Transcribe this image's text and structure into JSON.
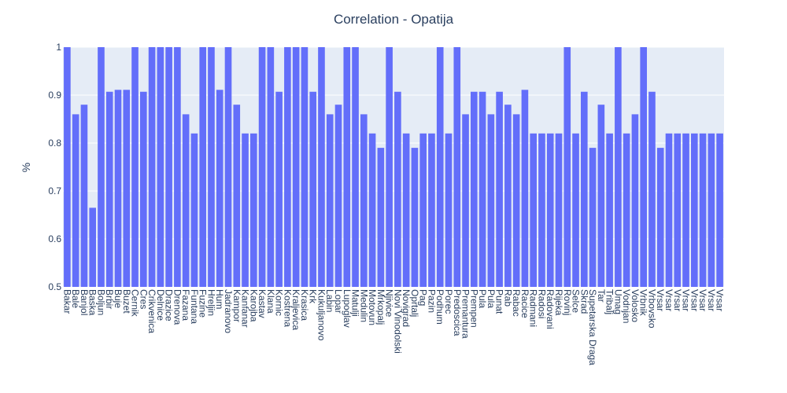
{
  "chart_data": {
    "type": "bar",
    "title": "Correlation - Opatija",
    "ylabel": "%",
    "xlabel": "",
    "ylim": [
      0.5,
      1.0
    ],
    "yticks": [
      "0.5",
      "0.6",
      "0.7",
      "0.8",
      "0.9",
      "1"
    ],
    "grid": true,
    "categories": [
      "Bakar",
      "Bale",
      "Banjol",
      "Baska",
      "Boljun",
      "Brbir",
      "Buje",
      "Buzet",
      "Cernik",
      "Cres",
      "Crikvenica",
      "Delnice",
      "Drazice",
      "Drenova",
      "Fazana",
      "Funtana",
      "Fuzine",
      "Hreljin",
      "Hum",
      "Jadranovo",
      "Kampor",
      "Kanfanar",
      "Karojba",
      "Kastav",
      "Klana",
      "Kornic",
      "Kostrena",
      "Kraljevica",
      "Krasica",
      "Krk",
      "Kukuljanovo",
      "Labin",
      "Lopar",
      "Lupoglav",
      "Matulji",
      "Medulin",
      "Motovun",
      "Mrkopalj",
      "Njivice",
      "Novi Vinodolski",
      "Novigrad",
      "Oprtalj",
      "Pag",
      "Pazin",
      "Podhum",
      "Porec",
      "Predoscica",
      "Premantura",
      "Prempen",
      "Pula",
      "Pula",
      "Punat",
      "Rab",
      "Rabac",
      "Racice",
      "Radmani",
      "Radosi",
      "Radovani",
      "Rijeka",
      "Rovinj",
      "Selce",
      "Skrad",
      "Supetarska Draga",
      "Tar",
      "Tribalj",
      "Umag",
      "Vodnjan",
      "Volosko",
      "Vrbnik",
      "Vrbovsko",
      "Vrsar",
      "Vrsar",
      "Vrsar",
      "Vrsar",
      "Vrsar",
      "Vrsar",
      "Vrsar",
      "Vrsar"
    ],
    "values": [
      1.0,
      0.86,
      0.88,
      0.665,
      1.0,
      0.907,
      0.911,
      0.911,
      1.0,
      0.907,
      1.0,
      1.0,
      1.0,
      1.0,
      0.86,
      0.82,
      1.0,
      1.0,
      0.911,
      1.0,
      0.88,
      0.82,
      0.82,
      1.0,
      1.0,
      0.907,
      1.0,
      1.0,
      1.0,
      0.907,
      1.0,
      0.86,
      0.88,
      1.0,
      1.0,
      0.86,
      0.82,
      0.79,
      1.0,
      0.907,
      0.82,
      0.79,
      0.82,
      0.82,
      1.0,
      0.82,
      1.0,
      0.86,
      0.907,
      0.907,
      0.86,
      0.907,
      0.88,
      0.86,
      0.911,
      0.82,
      0.82,
      0.82,
      0.82,
      1.0,
      0.82,
      0.907,
      0.79,
      0.88,
      0.82,
      1.0,
      0.82,
      0.86,
      1.0,
      0.907,
      0.79,
      0.82,
      0.82,
      0.82,
      0.82,
      0.82,
      0.82,
      0.82
    ],
    "bar_color": "#636efa",
    "plot_bg": "#e5ecf6",
    "grid_color": "#ffffff",
    "text_color": "#2a3f5f"
  }
}
